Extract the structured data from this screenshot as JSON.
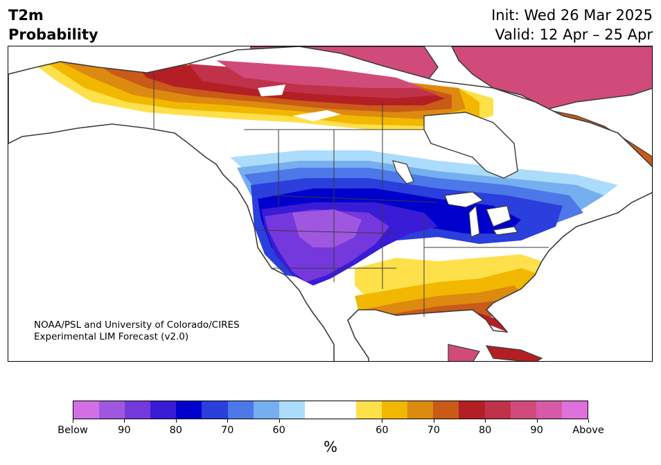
{
  "header": {
    "title_line1": "T2m",
    "title_line2": "Probability",
    "init": "Init: Wed 26 Mar 2025",
    "valid": "Valid: 12 Apr – 25 Apr"
  },
  "credit": {
    "line1": "NOAA/PSL and University of Colorado/CIRES",
    "line2": "Experimental LIM Forecast (v2.0)"
  },
  "colorbar": {
    "unit": "%",
    "tick_labels": [
      "Below",
      "90",
      "80",
      "70",
      "60",
      "60",
      "70",
      "80",
      "90",
      "Above"
    ],
    "below_colors": [
      "#d26fe6",
      "#a057e0",
      "#7438dd",
      "#3a1bd6",
      "#0000cc",
      "#2a3fdc",
      "#4c78e8",
      "#76aff0",
      "#acdcfb"
    ],
    "neutral_color": "#ffffff",
    "above_colors": [
      "#fde04a",
      "#f2b700",
      "#dd8a10",
      "#c95a18",
      "#b31f24",
      "#c0324a",
      "#d14b7a",
      "#d75aa8",
      "#e070dc"
    ]
  },
  "map": {
    "region": "North America",
    "colors": {
      "land": "#ffffff",
      "border": "#3a3a3a"
    }
  }
}
